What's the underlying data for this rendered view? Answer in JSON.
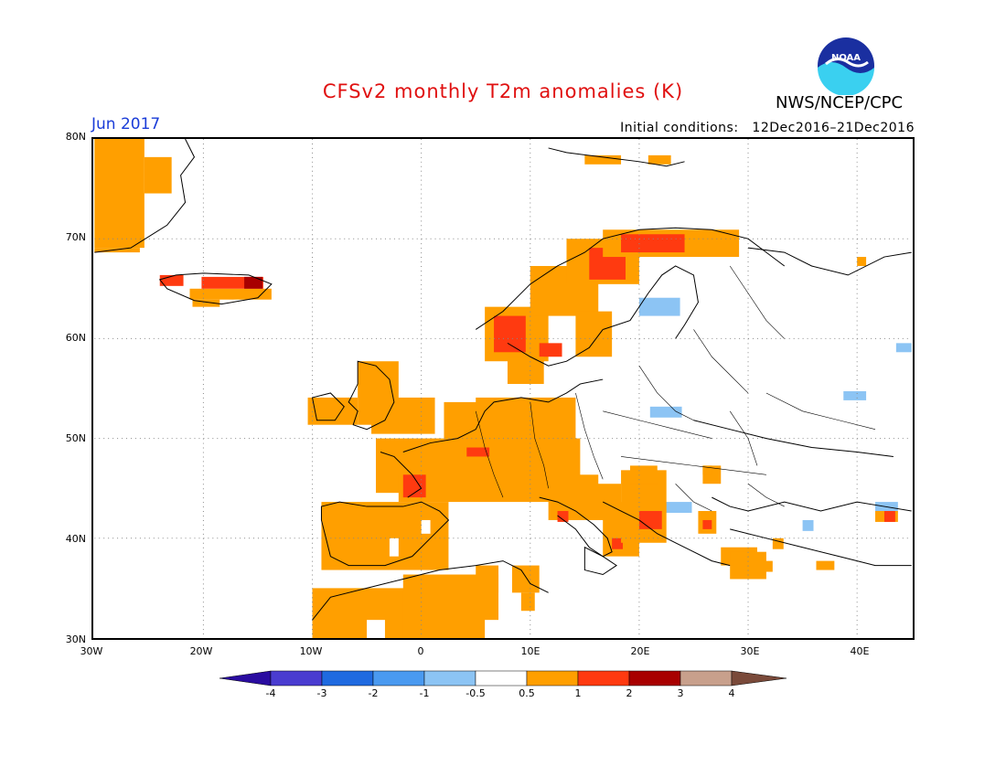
{
  "title": "CFSv2 monthly T2m anomalies (K)",
  "agency": "NWS/NCEP/CPC",
  "logo_text": "NOAA",
  "month": "Jun 2017",
  "initial_conditions_label": "Initial conditions:",
  "initial_conditions_value": "12Dec2016–21Dec2016",
  "lat_ticks": [
    "80N",
    "70N",
    "60N",
    "50N",
    "40N",
    "30N"
  ],
  "lon_ticks": [
    "30W",
    "20W",
    "10W",
    "0",
    "10E",
    "20E",
    "30E",
    "40E"
  ],
  "colorbar": {
    "labels": [
      "-4",
      "-3",
      "-2",
      "-1",
      "-0.5",
      "0.5",
      "1",
      "2",
      "3",
      "4"
    ],
    "colors": [
      "#2a0ca0",
      "#4a3cd0",
      "#1f6ae0",
      "#4a9af0",
      "#8cc4f4",
      "#ffffff",
      "#ff9f00",
      "#ff3a10",
      "#a80000",
      "#c8a08c",
      "#7a4a3a"
    ]
  },
  "colors": {
    "orange": "#ff9f00",
    "red": "#ff3a10",
    "darkred": "#a80000",
    "blue": "#8cc4f4",
    "title_red": "#e01010",
    "month_blue": "#1a3cd8"
  },
  "map_extent": {
    "lon": [
      -30,
      45
    ],
    "lat": [
      30,
      80
    ]
  }
}
